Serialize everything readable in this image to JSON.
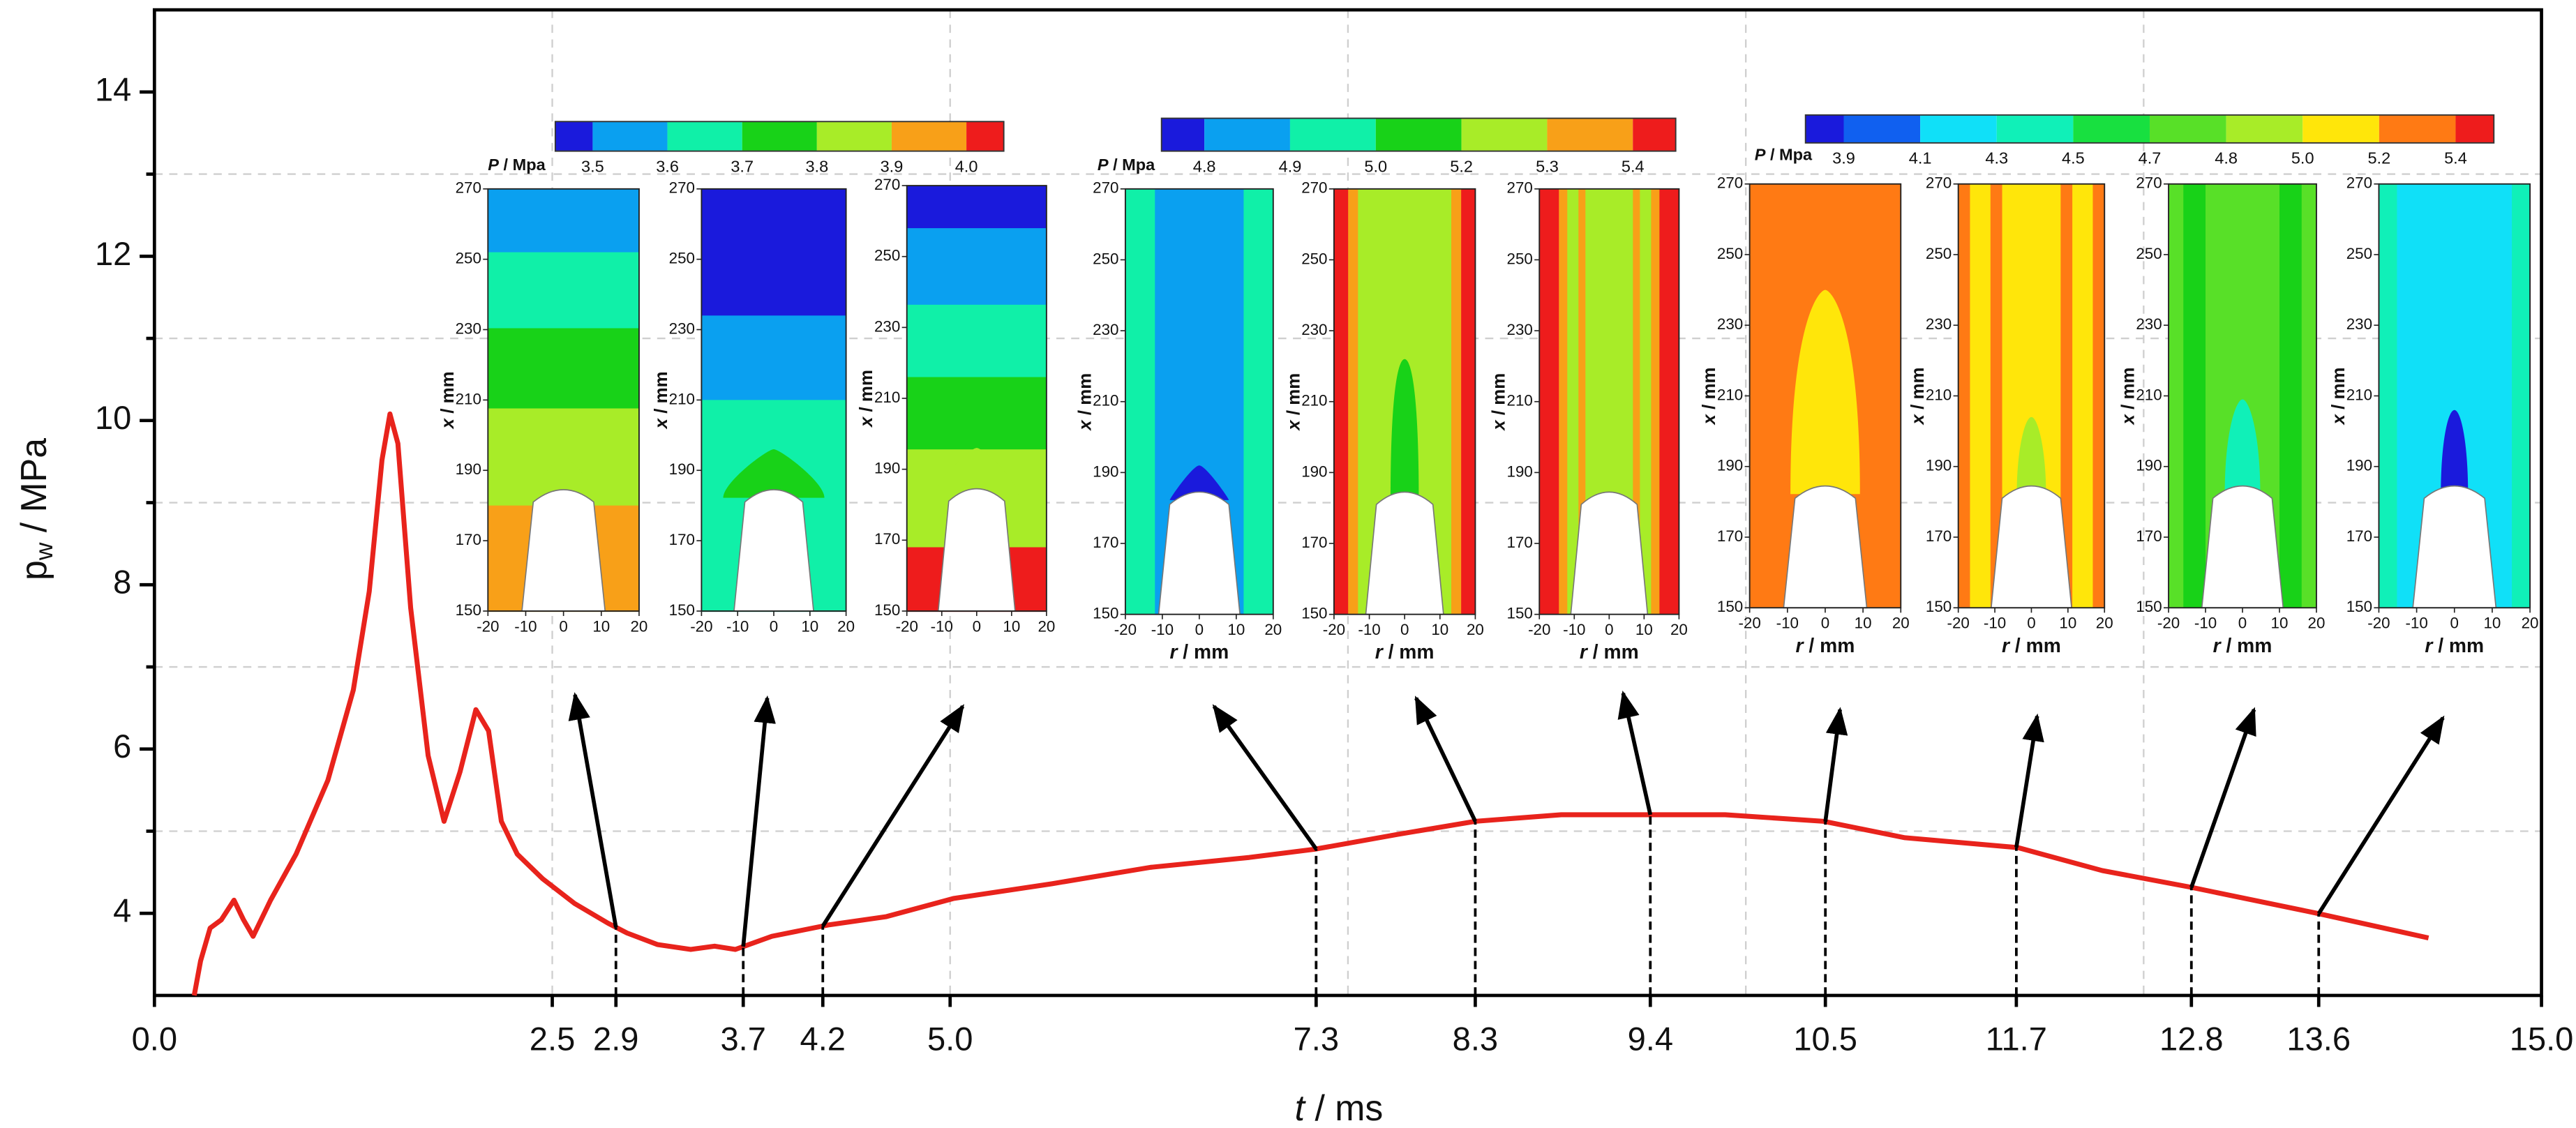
{
  "chart_data": {
    "type": "line",
    "xlabel": {
      "var": "t",
      "unit": " / ms"
    },
    "ylabel": {
      "base": "p",
      "sub": "w",
      "unit": " / MPa"
    },
    "x": [
      0.25,
      0.29,
      0.35,
      0.42,
      0.5,
      0.56,
      0.62,
      0.73,
      0.89,
      1.09,
      1.25,
      1.35,
      1.43,
      1.48,
      1.53,
      1.61,
      1.72,
      1.82,
      1.92,
      2.02,
      2.1,
      2.18,
      2.28,
      2.44,
      2.64,
      2.85,
      2.97,
      3.16,
      3.37,
      3.52,
      3.65,
      3.88,
      4.24,
      4.6,
      5.02,
      5.64,
      6.26,
      6.88,
      7.29,
      7.81,
      8.3,
      8.84,
      9.39,
      9.87,
      10.49,
      11.0,
      11.71,
      12.24,
      12.79,
      13.59,
      14.29
    ],
    "values": [
      3.0,
      3.42,
      3.82,
      3.92,
      4.16,
      3.92,
      3.72,
      4.16,
      4.72,
      5.62,
      6.72,
      7.92,
      9.52,
      10.08,
      9.72,
      7.72,
      5.92,
      5.12,
      5.72,
      6.48,
      6.22,
      5.12,
      4.72,
      4.42,
      4.12,
      3.88,
      3.76,
      3.62,
      3.56,
      3.6,
      3.56,
      3.72,
      3.86,
      3.96,
      4.18,
      4.36,
      4.56,
      4.68,
      4.78,
      4.96,
      5.12,
      5.2,
      5.2,
      5.2,
      5.12,
      4.92,
      4.8,
      4.52,
      4.32,
      4.0,
      3.7
    ],
    "color": "#e8231c",
    "xlim": [
      0,
      15
    ],
    "ylim": [
      3,
      15
    ],
    "xticks": [
      {
        "value": 0,
        "label": "0.0"
      },
      2.5,
      2.9,
      3.7,
      4.2,
      {
        "value": 5,
        "label": "5.0"
      },
      7.3,
      8.3,
      9.4,
      10.5,
      11.7,
      12.8,
      13.6,
      {
        "value": 15,
        "label": "15.0"
      }
    ],
    "yticks": [
      4,
      6,
      8,
      10,
      12,
      14
    ],
    "yminor": [
      5,
      7,
      9,
      11,
      13
    ],
    "xgrid": [
      2.5,
      5,
      7.5,
      10,
      12.5
    ],
    "grid": true
  },
  "insets": {
    "pressure_label": {
      "var": "P",
      "unit": " / Mpa"
    },
    "x_label": {
      "var": "x",
      "unit": " / mm"
    },
    "r_label": {
      "var": "r",
      "unit": " / mm"
    },
    "x_ticks": [
      150,
      170,
      190,
      210,
      230,
      250,
      270
    ],
    "r_ticks": [
      -20,
      -10,
      0,
      10,
      20
    ],
    "colorbars": [
      {
        "labels": [
          "3.5",
          "3.6",
          "3.7",
          "3.8",
          "3.9",
          "4.0"
        ],
        "colors": [
          "#1a1adc",
          "#0aa0f0",
          "#10f0a8",
          "#18d218",
          "#a8ec28",
          "#f8a018",
          "#ee1c1c"
        ]
      },
      {
        "labels": [
          "4.8",
          "4.9",
          "5.0",
          "5.2",
          "5.3",
          "5.4"
        ],
        "colors": [
          "#1a1adc",
          "#0aa0f0",
          "#10f0a8",
          "#18d218",
          "#a8ec28",
          "#f8a018",
          "#ee1c1c"
        ]
      },
      {
        "labels": [
          "3.9",
          "4.1",
          "4.3",
          "4.5",
          "4.7",
          "4.8",
          "5.0",
          "5.2",
          "5.4"
        ],
        "colors": [
          "#1a1adc",
          "#1060f0",
          "#10e0f8",
          "#10f0b8",
          "#18e040",
          "#58e028",
          "#a8ec28",
          "#ffe60a",
          "#ff7a14",
          "#ee1c1c"
        ]
      }
    ]
  }
}
